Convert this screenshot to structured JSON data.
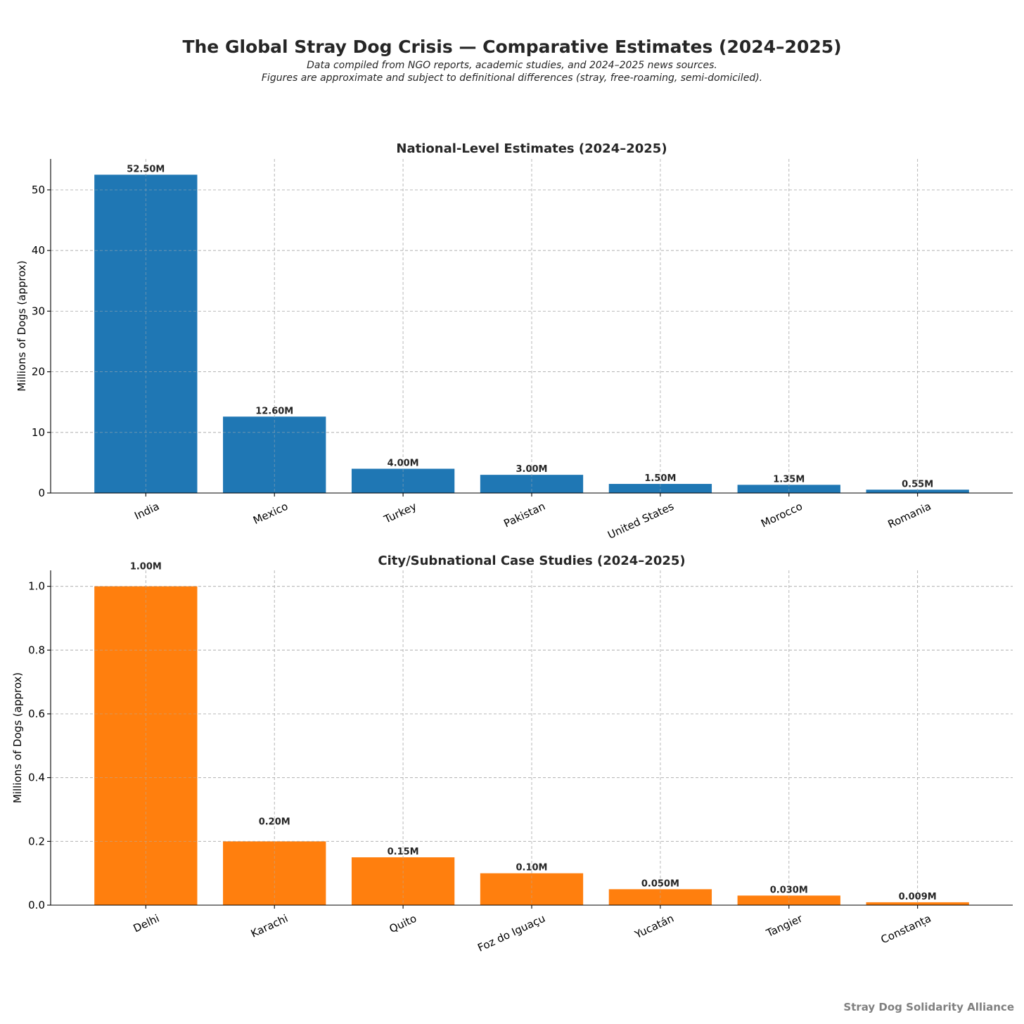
{
  "title": "The Global Stray Dog Crisis — Comparative Estimates (2024–2025)",
  "subtitle_line1": "Data compiled from NGO reports, academic studies, and 2024–2025 news sources.",
  "subtitle_line2": "Figures are approximate and subject to definitional differences (stray, free-roaming, semi-domiciled).",
  "credit": "Stray Dog Solidarity Alliance",
  "chart_data": [
    {
      "type": "bar",
      "title": "National-Level Estimates (2024–2025)",
      "xlabel": "",
      "ylabel": "Millions of Dogs (approx)",
      "categories": [
        "India",
        "Mexico",
        "Turkey",
        "Pakistan",
        "United States",
        "Morocco",
        "Romania"
      ],
      "values": [
        52.5,
        12.6,
        4.0,
        3.0,
        1.5,
        1.35,
        0.55
      ],
      "data_labels": [
        "52.50M",
        "12.60M",
        "4.00M",
        "3.00M",
        "1.50M",
        "1.35M",
        "0.55M"
      ],
      "yticks": [
        "0",
        "10",
        "20",
        "30",
        "40",
        "50"
      ],
      "ylim": [
        0,
        55.1
      ],
      "grid": true,
      "color": "#1f77b4"
    },
    {
      "type": "bar",
      "title": "City/Subnational Case Studies (2024–2025)",
      "xlabel": "",
      "ylabel": "Millions of Dogs (approx)",
      "categories": [
        "Delhi",
        "Karachi",
        "Quito",
        "Foz do Iguaçu",
        "Yucatán",
        "Tangier",
        "Constanța"
      ],
      "values": [
        1.0,
        0.2,
        0.15,
        0.1,
        0.05,
        0.03,
        0.009
      ],
      "data_labels": [
        "1.00M",
        "0.20M",
        "0.15M",
        "0.10M",
        "0.050M",
        "0.030M",
        "0.009M"
      ],
      "yticks": [
        "0.0",
        "0.2",
        "0.4",
        "0.6",
        "0.8",
        "1.0"
      ],
      "ylim": [
        0,
        1.05
      ],
      "grid": true,
      "color": "#ff7f0e"
    }
  ]
}
